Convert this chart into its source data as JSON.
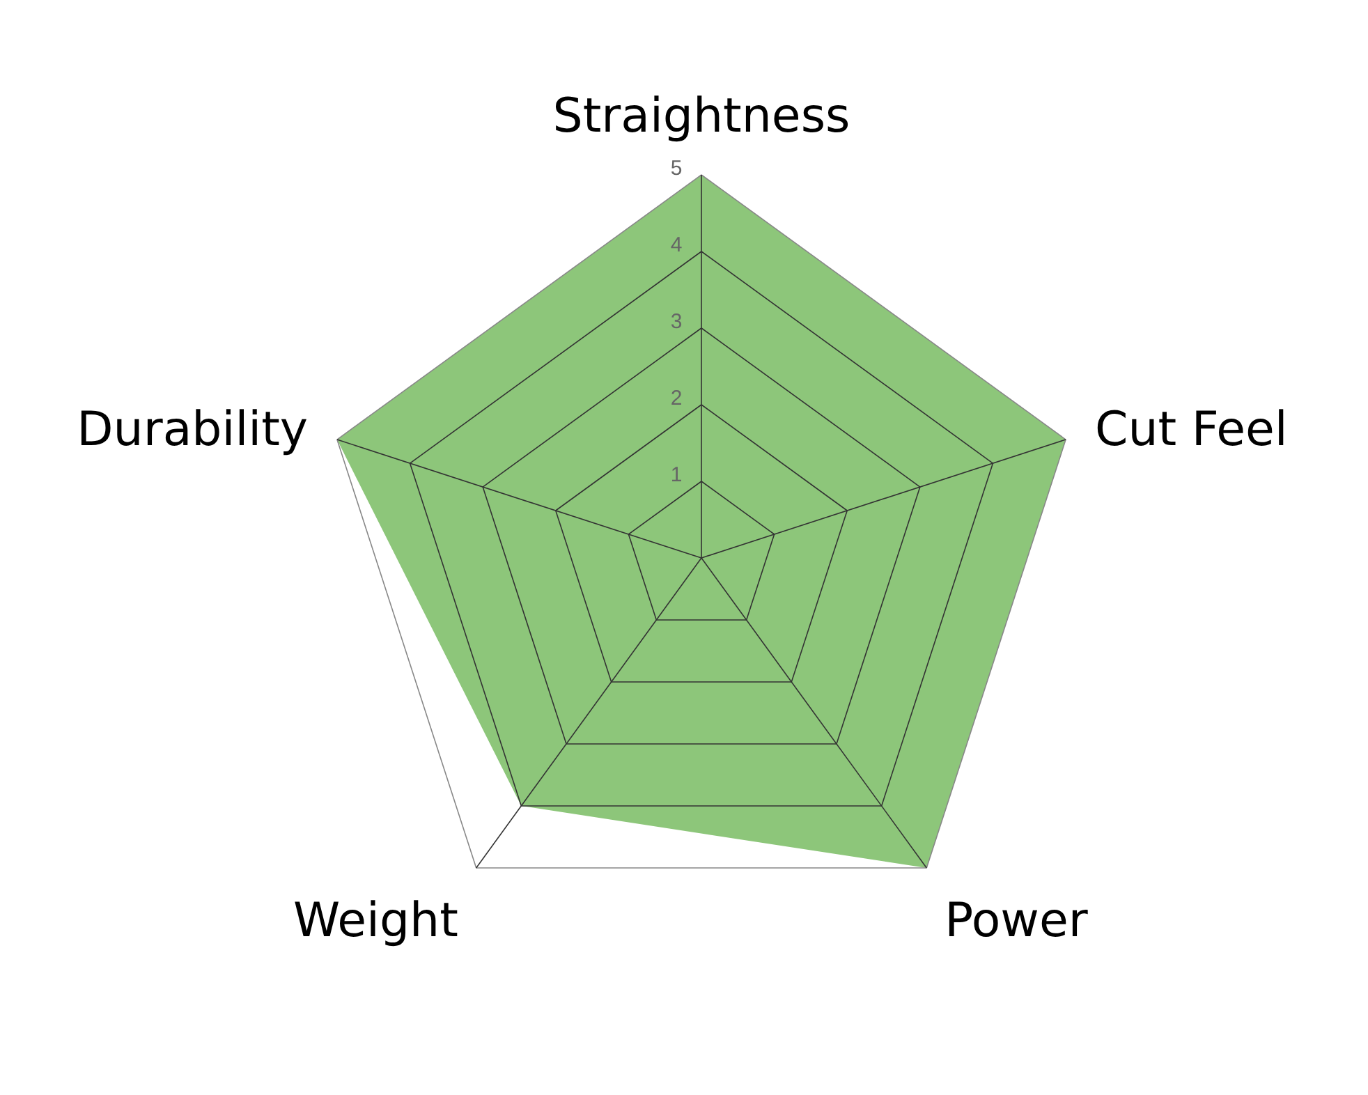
{
  "chart_data": {
    "type": "radar",
    "categories": [
      "Straightness",
      "Cut Feel",
      "Power",
      "Weight",
      "Durability"
    ],
    "series": [
      {
        "color": "#8dc67a",
        "values": [
          5,
          5,
          5,
          4,
          5
        ]
      }
    ],
    "ylim": [
      0,
      5
    ],
    "yticks": [
      1,
      2,
      3,
      4,
      5
    ],
    "grid": true
  }
}
